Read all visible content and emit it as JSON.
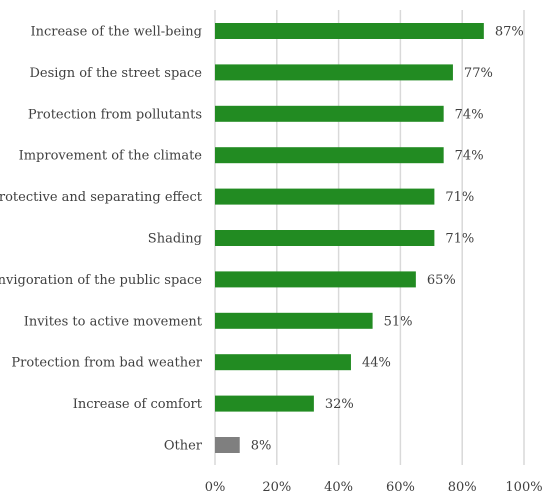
{
  "chart_data": {
    "type": "bar",
    "orientation": "horizontal",
    "title": "",
    "xlabel": "",
    "ylabel": "",
    "categories": [
      "Increase of the well-being",
      "Design of the street space",
      "Protection from pollutants",
      "Improvement of the climate",
      "Protective and separating effect",
      "Shading",
      "Invigoration of the public space",
      "Invites to active movement",
      "Protection from bad weather",
      "Increase of comfort",
      "Other"
    ],
    "values": [
      87,
      77,
      74,
      74,
      71,
      71,
      65,
      51,
      44,
      32,
      8
    ],
    "value_labels": [
      "87%",
      "77%",
      "74%",
      "74%",
      "71%",
      "71%",
      "65%",
      "51%",
      "44%",
      "32%",
      "8%"
    ],
    "bar_colors": [
      "#228b22",
      "#228b22",
      "#228b22",
      "#228b22",
      "#228b22",
      "#228b22",
      "#228b22",
      "#228b22",
      "#228b22",
      "#228b22",
      "#7f7f7f"
    ],
    "xlim": [
      0,
      100
    ],
    "x_ticks": [
      0,
      20,
      40,
      60,
      80,
      100
    ],
    "x_tick_labels": [
      "0%",
      "20%",
      "40%",
      "60%",
      "80%",
      "100%"
    ],
    "grid": "vertical",
    "legend": "none"
  }
}
